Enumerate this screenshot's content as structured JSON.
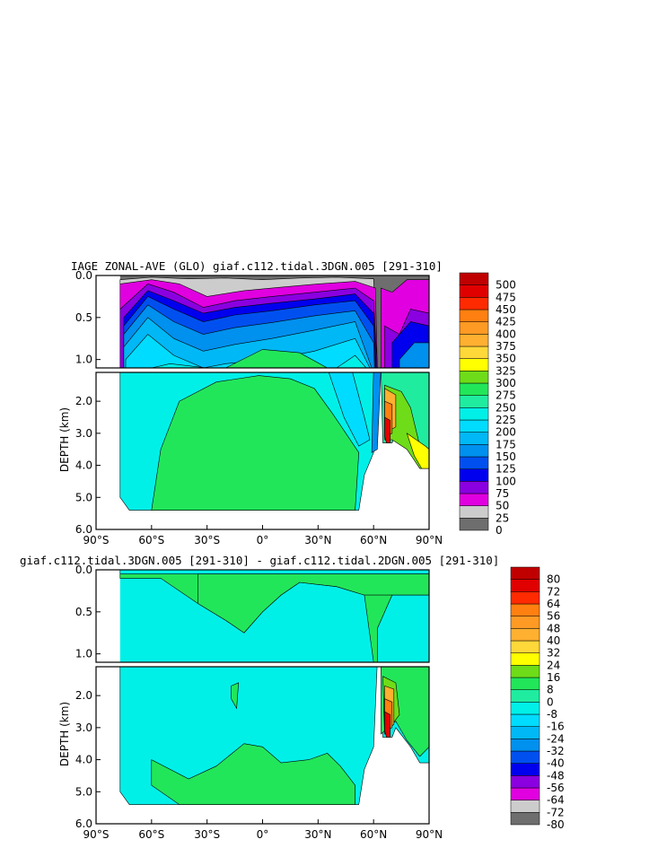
{
  "chart_data": [
    {
      "type": "heatmap",
      "title": "IAGE ZONAL-AVE (GLO) giaf.c112.tidal.3DGN.005 [291-310]",
      "xlabel": "",
      "ylabel": "DEPTH (km)",
      "x_tick_labels": [
        "90°S",
        "60°S",
        "30°S",
        "0°",
        "30°N",
        "60°N",
        "90°N"
      ],
      "x_ticks": [
        -90,
        -60,
        -30,
        0,
        30,
        60,
        90
      ],
      "y_tick_labels": [
        "0.0",
        "0.5",
        "1.0",
        "2.0",
        "3.0",
        "4.0",
        "5.0",
        "6.0"
      ],
      "y_ticks": [
        0,
        0.5,
        1.0,
        2.0,
        3.0,
        4.0,
        5.0,
        6.0
      ],
      "xlim": [
        -90,
        90
      ],
      "ylim_upper_panel": [
        0,
        1.1
      ],
      "ylim_lower_panel": [
        1.1,
        6.0
      ],
      "colorbar_levels": [
        "0",
        "25",
        "50",
        "75",
        "100",
        "125",
        "150",
        "175",
        "200",
        "225",
        "250",
        "275",
        "300",
        "325",
        "350",
        "375",
        "400",
        "425",
        "450",
        "475",
        "500"
      ],
      "colorbar_colors": [
        "#6e6e6e",
        "#cccccc",
        "#e000e0",
        "#8a00e0",
        "#0000ee",
        "#0050f0",
        "#0090ee",
        "#00b8f5",
        "#00dcff",
        "#00f0e8",
        "#20eca0",
        "#22e65a",
        "#6edc18",
        "#ffff00",
        "#ffd83a",
        "#ffb030",
        "#ff9a24",
        "#ff8010",
        "#ff2a00",
        "#e00000",
        "#c00000"
      ],
      "annotation": ""
    },
    {
      "type": "heatmap",
      "title": "giaf.c112.tidal.3DGN.005 [291-310] - giaf.c112.tidal.2DGN.005 [291-310]",
      "xlabel": "",
      "ylabel": "DEPTH (km)",
      "x_tick_labels": [
        "90°S",
        "60°S",
        "30°S",
        "0°",
        "30°N",
        "60°N",
        "90°N"
      ],
      "x_ticks": [
        -90,
        -60,
        -30,
        0,
        30,
        60,
        90
      ],
      "y_tick_labels": [
        "0.0",
        "0.5",
        "1.0",
        "2.0",
        "3.0",
        "4.0",
        "5.0",
        "6.0"
      ],
      "y_ticks": [
        0,
        0.5,
        1.0,
        2.0,
        3.0,
        4.0,
        5.0,
        6.0
      ],
      "xlim": [
        -90,
        90
      ],
      "ylim_upper_panel": [
        0,
        1.1
      ],
      "ylim_lower_panel": [
        1.1,
        6.0
      ],
      "colorbar_levels": [
        "-80",
        "-72",
        "-64",
        "-56",
        "-48",
        "-40",
        "-32",
        "-24",
        "-16",
        "-8",
        "0",
        "8",
        "16",
        "24",
        "32",
        "40",
        "48",
        "56",
        "64",
        "72",
        "80"
      ],
      "colorbar_colors": [
        "#6e6e6e",
        "#cccccc",
        "#e000e0",
        "#8a00e0",
        "#0000ee",
        "#0050f0",
        "#0090ee",
        "#00b8f5",
        "#00dcff",
        "#00f0e8",
        "#20eca0",
        "#22e65a",
        "#6edc18",
        "#ffff00",
        "#ffd83a",
        "#ffb030",
        "#ff9a24",
        "#ff8010",
        "#ff2a00",
        "#e00000",
        "#c00000"
      ]
    }
  ]
}
